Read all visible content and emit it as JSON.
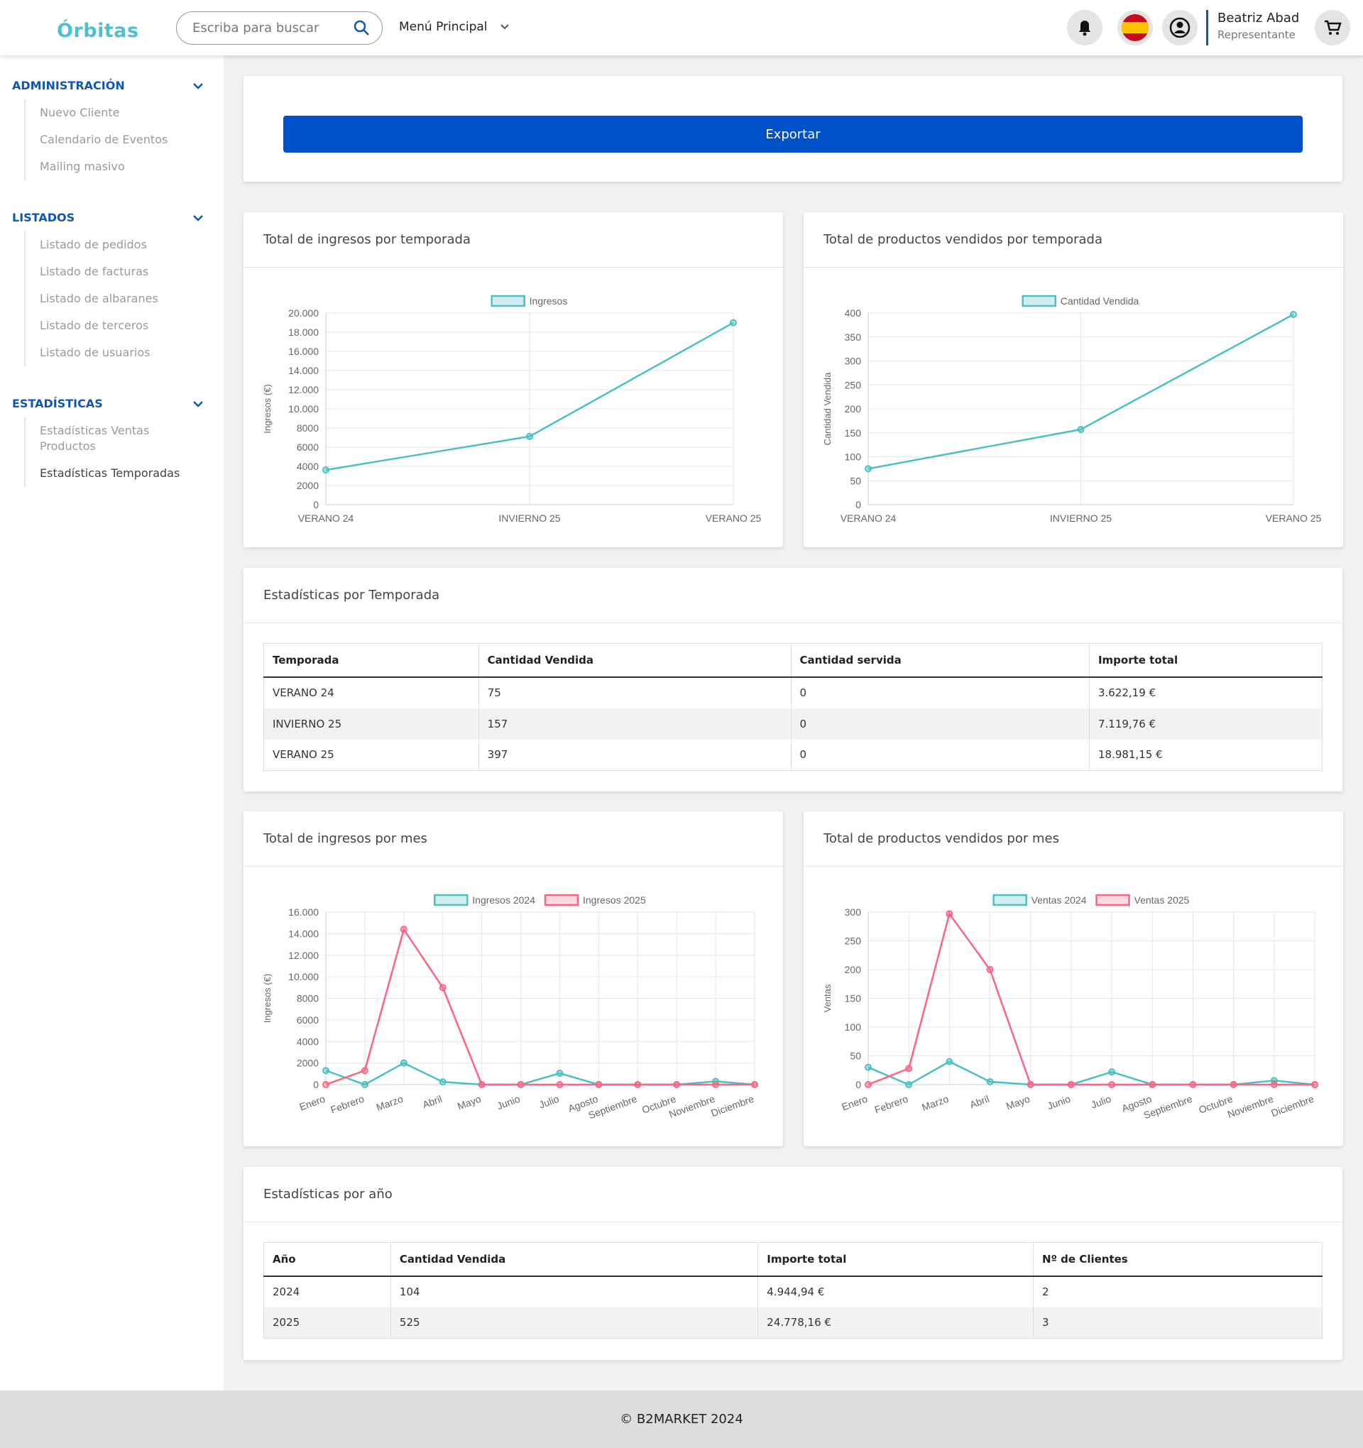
{
  "header": {
    "logo": "Órbitas",
    "search_placeholder": "Escriba para buscar",
    "menu": "Menú Principal",
    "user_name": "Beatriz Abad",
    "user_role": "Representante"
  },
  "sidebar": [
    {
      "title": "ADMINISTRACIÓN",
      "items": [
        "Nuevo Cliente",
        "Calendario de Eventos",
        "Mailing masivo"
      ]
    },
    {
      "title": "LISTADOS",
      "items": [
        "Listado de pedidos",
        "Listado de facturas",
        "Listado de albaranes",
        "Listado de terceros",
        "Listado de usuarios"
      ]
    },
    {
      "title": "ESTADÍSTICAS",
      "items": [
        "Estadísticas Ventas Productos",
        "Estadísticas Temporadas"
      ]
    }
  ],
  "export_button": "Exportar",
  "chart_data": [
    {
      "type": "line",
      "title": "Total de ingresos por temporada",
      "categories": [
        "VERANO 24",
        "INVIERNO 25",
        "VERANO 25"
      ],
      "series": [
        {
          "name": "Ingresos",
          "color": "#4bc0c0",
          "values": [
            3622.19,
            7119.76,
            18981.15
          ]
        }
      ],
      "ylabel": "Ingresos (€)",
      "ylim": [
        0,
        20000
      ],
      "yticks": [
        0,
        2000,
        4000,
        6000,
        8000,
        {
          "value": 10000,
          "label": "10.000"
        },
        {
          "value": 12000,
          "label": "12.000"
        },
        {
          "value": 14000,
          "label": "14.000"
        },
        {
          "value": 16000,
          "label": "16.000"
        },
        {
          "value": 18000,
          "label": "18.000"
        },
        {
          "value": 20000,
          "label": "20.000"
        }
      ],
      "grid": true,
      "legend": "top"
    },
    {
      "type": "line",
      "title": "Total de productos vendidos por temporada",
      "categories": [
        "VERANO 24",
        "INVIERNO 25",
        "VERANO 25"
      ],
      "series": [
        {
          "name": "Cantidad Vendida",
          "color": "#4bc0c0",
          "values": [
            75,
            157,
            397
          ]
        }
      ],
      "ylabel": "Cantidad Vendida",
      "ylim": [
        0,
        400
      ],
      "yticks": [
        0,
        50,
        100,
        150,
        200,
        250,
        300,
        350,
        400
      ],
      "grid": true,
      "legend": "top"
    },
    {
      "type": "line",
      "title": "Total de ingresos por mes",
      "categories": [
        "Enero",
        "Febrero",
        "Marzo",
        "Abril",
        "Mayo",
        "Junio",
        "Julio",
        "Agosto",
        "Septiembre",
        "Octubre",
        "Noviembre",
        "Diciembre"
      ],
      "series": [
        {
          "name": "Ingresos 2024",
          "color": "#4bc0c0",
          "values": [
            1300,
            0,
            2000,
            250,
            0,
            0,
            1050,
            0,
            0,
            0,
            300,
            0
          ]
        },
        {
          "name": "Ingresos 2025",
          "color": "#ff6384",
          "values": [
            0,
            1300,
            14400,
            9000,
            0,
            0,
            0,
            0,
            0,
            0,
            0,
            0
          ]
        }
      ],
      "ylabel": "Ingresos (€)",
      "ylim": [
        0,
        16000
      ],
      "yticks": [
        0,
        2000,
        4000,
        6000,
        8000,
        {
          "value": 10000,
          "label": "10.000"
        },
        {
          "value": 12000,
          "label": "12.000"
        },
        {
          "value": 14000,
          "label": "14.000"
        },
        {
          "value": 16000,
          "label": "16.000"
        }
      ],
      "grid": true,
      "legend": "top"
    },
    {
      "type": "line",
      "title": "Total de productos vendidos por mes",
      "categories": [
        "Enero",
        "Febrero",
        "Marzo",
        "Abril",
        "Mayo",
        "Junio",
        "Julio",
        "Agosto",
        "Septiembre",
        "Octubre",
        "Noviembre",
        "Diciembre"
      ],
      "series": [
        {
          "name": "Ventas 2024",
          "color": "#4bc0c0",
          "values": [
            30,
            0,
            40,
            5,
            0,
            0,
            22,
            0,
            0,
            0,
            7,
            0
          ]
        },
        {
          "name": "Ventas 2025",
          "color": "#ff6384",
          "values": [
            0,
            28,
            297,
            200,
            0,
            0,
            0,
            0,
            0,
            0,
            0,
            0
          ]
        }
      ],
      "ylabel": "Ventas",
      "ylim": [
        0,
        300
      ],
      "yticks": [
        0,
        50,
        100,
        150,
        200,
        250,
        300
      ],
      "grid": true,
      "legend": "top"
    }
  ],
  "tables": [
    {
      "title": "Estadísticas por Temporada",
      "columns": [
        "Temporada",
        "Cantidad Vendida",
        "Cantidad servida",
        "Importe total"
      ],
      "rows": [
        [
          "VERANO 24",
          "75",
          "0",
          "3.622,19 €"
        ],
        [
          "INVIERNO 25",
          "157",
          "0",
          "7.119,76 €"
        ],
        [
          "VERANO 25",
          "397",
          "0",
          "18.981,15 €"
        ]
      ]
    },
    {
      "title": "Estadísticas por año",
      "columns": [
        "Año",
        "Cantidad Vendida",
        "Importe total",
        "Nº de Clientes"
      ],
      "rows": [
        [
          "2024",
          "104",
          "4.944,94 €",
          "2"
        ],
        [
          "2025",
          "525",
          "24.778,16 €",
          "3"
        ]
      ]
    }
  ],
  "footer": "© B2MARKET 2024"
}
